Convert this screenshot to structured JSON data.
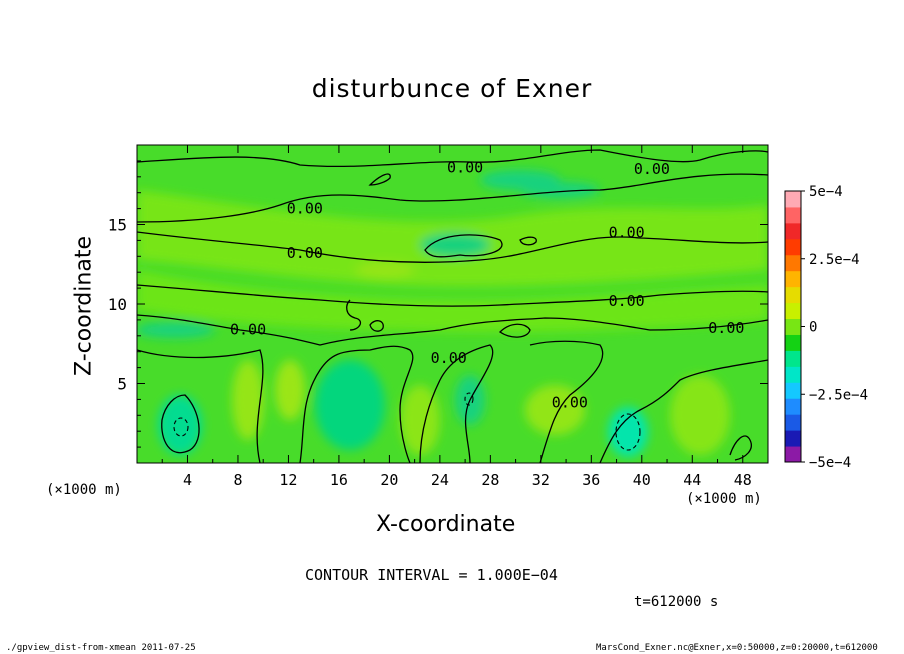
{
  "chart_data": {
    "type": "heatmap",
    "title": "disturbunce of Exner",
    "xlabel": "X-coordinate",
    "ylabel": "Z-coordinate",
    "x_unit_label": "(×1000 m)",
    "x_ticks": [
      "4",
      "8",
      "12",
      "16",
      "20",
      "24",
      "28",
      "32",
      "36",
      "40",
      "44",
      "48"
    ],
    "x_tick_values": [
      4,
      8,
      12,
      16,
      20,
      24,
      28,
      32,
      36,
      40,
      44,
      48
    ],
    "y_ticks": [
      "5",
      "10",
      "15"
    ],
    "y_tick_values": [
      5,
      10,
      15
    ],
    "xlim": [
      0,
      50
    ],
    "ylim": [
      0,
      20
    ],
    "colorbar": {
      "labels": [
        "5e−4",
        "2.5e−4",
        "0",
        "−2.5e−4",
        "−5e−4"
      ],
      "label_values": [
        0.0005,
        0.00025,
        0,
        -0.00025,
        -0.0005
      ],
      "range": [
        -0.0005,
        0.0005
      ],
      "colors": [
        "#8c1aa6",
        "#1a1ab4",
        "#1a5ae6",
        "#1e8cff",
        "#14c8ff",
        "#00e6c8",
        "#00e68c",
        "#14d214",
        "#78e614",
        "#c8f000",
        "#e6dc00",
        "#ffb400",
        "#ff7800",
        "#ff3c00",
        "#f02828",
        "#ff6464",
        "#ffaab4"
      ]
    },
    "contour_labels": [
      {
        "text": "0.00",
        "x": 26,
        "z": 18.6
      },
      {
        "text": "0.00",
        "x": 40.8,
        "z": 18.5
      },
      {
        "text": "0.00",
        "x": 13.3,
        "z": 16.0
      },
      {
        "text": "0.00",
        "x": 38.8,
        "z": 14.5
      },
      {
        "text": "0.00",
        "x": 13.3,
        "z": 13.2
      },
      {
        "text": "0.00",
        "x": 38.8,
        "z": 10.2
      },
      {
        "text": "0.00",
        "x": 8.8,
        "z": 8.4
      },
      {
        "text": "0.00",
        "x": 46.7,
        "z": 8.5
      },
      {
        "text": "0.00",
        "x": 24.7,
        "z": 6.6
      },
      {
        "text": "0.00",
        "x": 34.3,
        "z": 3.8
      }
    ],
    "contour_interval_text": "CONTOUR INTERVAL = 1.000E−04",
    "time_text": "t=612000 s"
  },
  "footer": {
    "left": "./gpview_dist-from-xmean  2011-07-25",
    "right": "MarsCond_Exner.nc@Exner,x=0:50000,z=0:20000,t=612000"
  }
}
